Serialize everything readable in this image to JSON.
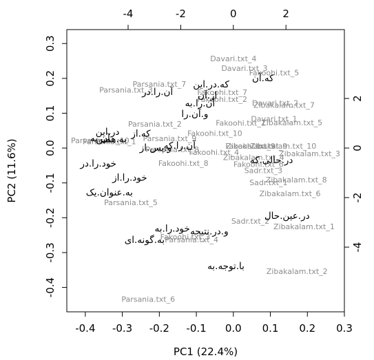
{
  "chart_data": {
    "type": "scatter",
    "subtype": "biplot",
    "xlabel": "PC1 (22.4%)",
    "ylabel": "PC2 (11.6%)",
    "xlim": [
      -0.45,
      0.3
    ],
    "ylim": [
      -0.47,
      0.34
    ],
    "x_ticks": [
      "-0.4",
      "-0.3",
      "-0.2",
      "-0.1",
      "0.0",
      "0.1",
      "0.2",
      "0.3"
    ],
    "y_ticks": [
      "-0.4",
      "-0.3",
      "-0.2",
      "-0.1",
      "0.0",
      "0.1",
      "0.2",
      "0.3"
    ],
    "top_ticks": [
      "-4",
      "-2",
      "0",
      "2"
    ],
    "right_ticks": [
      "-4",
      "-2",
      "0",
      "2"
    ],
    "top_lim": [
      -6.33,
      4.22
    ],
    "right_lim": [
      -6.61,
      4.78
    ],
    "grid": false,
    "legend": "none",
    "observations": [
      {
        "label": "Davari.txt_4",
        "x": 0.0,
        "y": 0.255
      },
      {
        "label": "Davari.txt_3",
        "x": 0.03,
        "y": 0.227
      },
      {
        "label": "Fakoohi.txt_5",
        "x": 0.11,
        "y": 0.215
      },
      {
        "label": "Parsania.txt_7",
        "x": -0.2,
        "y": 0.182
      },
      {
        "label": "Parsania.txt_3",
        "x": -0.29,
        "y": 0.165
      },
      {
        "label": "Fakoohi.txt_7",
        "x": -0.03,
        "y": 0.158
      },
      {
        "label": "Fakoohi.txt_2",
        "x": -0.03,
        "y": 0.138
      },
      {
        "label": "Davari.txt_2",
        "x": 0.113,
        "y": 0.128
      },
      {
        "label": "Zibakalam.txt_7",
        "x": 0.137,
        "y": 0.122
      },
      {
        "label": "Davari.txt_1",
        "x": 0.11,
        "y": 0.082
      },
      {
        "label": "Zibakalam.txt_5",
        "x": 0.158,
        "y": 0.071
      },
      {
        "label": "Fakoohi.txt_1",
        "x": 0.02,
        "y": 0.07
      },
      {
        "label": "Parsania.txt_2",
        "x": -0.212,
        "y": 0.067
      },
      {
        "label": "Fakoohi.txt_10",
        "x": -0.05,
        "y": 0.041
      },
      {
        "label": "Parsania.txt_10",
        "x": -0.36,
        "y": 0.02
      },
      {
        "label": "Parsania.txt_1",
        "x": -0.335,
        "y": 0.017
      },
      {
        "label": "Parsania.txt_9",
        "x": -0.172,
        "y": 0.026
      },
      {
        "label": "Zibakalam.txt_9",
        "x": 0.063,
        "y": 0.004
      },
      {
        "label": "Fakoohi.txt_9",
        "x": 0.046,
        "y": 0.004
      },
      {
        "label": "Zibakalam.txt_10",
        "x": 0.135,
        "y": 0.004
      },
      {
        "label": "Parsania.txt_8",
        "x": -0.165,
        "y": -0.006
      },
      {
        "label": "Fakoohi.txt_4",
        "x": -0.052,
        "y": -0.014
      },
      {
        "label": "Zibakalam.txt_4",
        "x": 0.055,
        "y": -0.028
      },
      {
        "label": "Zibakalam.txt_3",
        "x": 0.206,
        "y": -0.018
      },
      {
        "label": "Fakoohi.txt_8",
        "x": -0.135,
        "y": -0.045
      },
      {
        "label": "Fakoohi.txt_6",
        "x": 0.068,
        "y": -0.048
      },
      {
        "label": "Sadr.txt_3",
        "x": 0.081,
        "y": -0.066
      },
      {
        "label": "Zibakalam.txt_8",
        "x": 0.17,
        "y": -0.093
      },
      {
        "label": "Sadr.txt_1",
        "x": 0.095,
        "y": -0.101
      },
      {
        "label": "Zibakalam.txt_6",
        "x": 0.153,
        "y": -0.132
      },
      {
        "label": "Parsania.txt_5",
        "x": -0.277,
        "y": -0.158
      },
      {
        "label": "Sadr.txt_2",
        "x": 0.046,
        "y": -0.211
      },
      {
        "label": "Zibakalam.txt_1",
        "x": 0.191,
        "y": -0.227
      },
      {
        "label": "Fakoohi.txt_3",
        "x": -0.13,
        "y": -0.257
      },
      {
        "label": "Parsania.txt_4",
        "x": -0.113,
        "y": -0.265
      },
      {
        "label": "Zibakalam.txt_2",
        "x": 0.172,
        "y": -0.355
      },
      {
        "label": "Parsania.txt_6",
        "x": -0.23,
        "y": -0.435
      }
    ],
    "variables": [
      {
        "label": "که.آن",
        "x": 0.08,
        "y": 0.2
      },
      {
        "label": "که.در.این",
        "x": -0.06,
        "y": 0.182
      },
      {
        "label": "آن.را.در",
        "x": -0.205,
        "y": 0.16
      },
      {
        "label": "از.آن",
        "x": -0.07,
        "y": 0.15
      },
      {
        "label": "آن.را.به",
        "x": -0.09,
        "y": 0.128
      },
      {
        "label": "و.آن.را",
        "x": -0.104,
        "y": 0.097
      },
      {
        "label": "در.این",
        "x": -0.34,
        "y": 0.046
      },
      {
        "label": "که.از",
        "x": -0.25,
        "y": 0.041
      },
      {
        "label": "به.همین",
        "x": -0.33,
        "y": 0.025
      },
      {
        "label": "آن.به",
        "x": -0.36,
        "y": 0.027
      },
      {
        "label": "و.پس.از",
        "x": -0.21,
        "y": 0.0
      },
      {
        "label": "آن.را.که",
        "x": -0.145,
        "y": 0.006
      },
      {
        "label": "در.حالی.که",
        "x": 0.103,
        "y": -0.035
      },
      {
        "label": "خود.را.در",
        "x": -0.365,
        "y": -0.045
      },
      {
        "label": "خود.را.از",
        "x": -0.28,
        "y": -0.086
      },
      {
        "label": "به.عنوان.یک",
        "x": -0.335,
        "y": -0.128
      },
      {
        "label": "در.عین.حال",
        "x": 0.145,
        "y": -0.195
      },
      {
        "label": "خود.را.به",
        "x": -0.165,
        "y": -0.232
      },
      {
        "label": "و.در.نتیجه",
        "x": -0.065,
        "y": -0.24
      },
      {
        "label": "به.گونه.ای",
        "x": -0.24,
        "y": -0.265
      },
      {
        "label": "با.توجه.به",
        "x": -0.02,
        "y": -0.34
      }
    ]
  }
}
